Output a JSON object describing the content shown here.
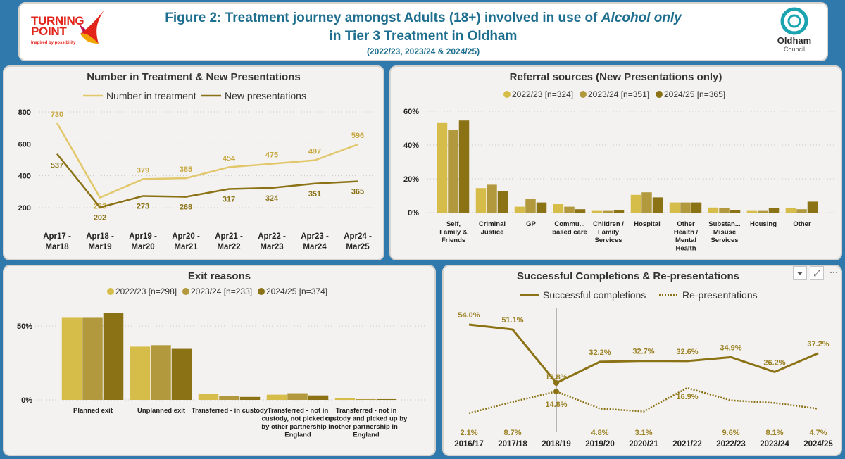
{
  "header": {
    "title_line1_prefix": "Figure 2: Treatment journey amongst Adults (18+) involved in use of ",
    "title_line1_italic": "Alcohol only",
    "title_line2": "in Tier 3 Treatment in Oldham",
    "subtitle": "(2022/23, 2023/24 & 2024/25)",
    "logo_left_line1": "TURNING",
    "logo_left_line2": "POINT",
    "logo_left_tagline": "Inspired by possibility",
    "logo_right_name": "Oldham",
    "logo_right_sub": "Council"
  },
  "colors": {
    "series_light": "#d6bd4a",
    "series_mid": "#b2993d",
    "series_dark": "#8b7214",
    "treat_line": "#e2c76a",
    "new_line": "#8b7214",
    "brand_red": "#e2231a",
    "oldham_teal": "#1aa3b0"
  },
  "toolbar_icons": [
    "filter-icon",
    "focus-mode-icon",
    "more-options-icon"
  ],
  "chart_data": [
    {
      "type": "line",
      "title": "Number in Treatment & New Presentations",
      "categories": [
        "Apr17 - Mar18",
        "Apr18 - Mar19",
        "Apr19 - Mar20",
        "Apr20 - Mar21",
        "Apr21 - Mar22",
        "Apr22 - Mar23",
        "Apr23 - Mar24",
        "Apr24 - Mar25"
      ],
      "series": [
        {
          "name": "Number in treatment",
          "values": [
            730,
            263,
            379,
            385,
            454,
            475,
            497,
            596
          ]
        },
        {
          "name": "New presentations",
          "values": [
            537,
            202,
            273,
            268,
            317,
            324,
            351,
            365
          ]
        }
      ],
      "yticks": [
        200,
        400,
        600,
        800
      ],
      "ylim": [
        120,
        830
      ],
      "grid": true,
      "legend": "top"
    },
    {
      "type": "bar",
      "title": "Referral sources (New Presentations only)",
      "categories": [
        "Self, Family & Friends",
        "Criminal Justice",
        "GP",
        "Commu... based care",
        "Children / Family Services",
        "Hospital",
        "Other Health / Mental Health",
        "Substan... Misuse Services",
        "Housing",
        "Other"
      ],
      "series": [
        {
          "name": "2022/23 [n=324]",
          "values": [
            53,
            14.5,
            3.5,
            5,
            1,
            10.5,
            6,
            3,
            1,
            2.5
          ]
        },
        {
          "name": "2023/24 [n=351]",
          "values": [
            49,
            16.5,
            8,
            3.5,
            1,
            12,
            6,
            2.5,
            1,
            2
          ]
        },
        {
          "name": "2024/25 [n=365]",
          "values": [
            54.5,
            12.5,
            6,
            2,
            1.5,
            9,
            6,
            1.5,
            2.5,
            6.5
          ]
        }
      ],
      "yticks": [
        "0%",
        "20%",
        "40%",
        "60%"
      ],
      "ylim": [
        0,
        62
      ],
      "grid": true,
      "legend": "top"
    },
    {
      "type": "bar",
      "title": "Exit reasons",
      "categories": [
        "Planned exit",
        "Unplanned exit",
        "Transferred - in custody",
        "Transferred - not in custody, not picked up by other partnership in England",
        "Transferred - not in custody and picked up by other partnership in England"
      ],
      "series": [
        {
          "name": "2022/23 [n=298]",
          "values": [
            55.5,
            36,
            4,
            3.5,
            1
          ]
        },
        {
          "name": "2023/24 [n=233]",
          "values": [
            55.5,
            37,
            2.5,
            4.5,
            0.5
          ]
        },
        {
          "name": "2024/25 [n=374]",
          "values": [
            59,
            34.5,
            2,
            3,
            0.5
          ]
        }
      ],
      "yticks": [
        "0%",
        "50%"
      ],
      "ylim": [
        0,
        65
      ],
      "grid": true,
      "legend": "top"
    },
    {
      "type": "line",
      "title": "Successful Completions & Re-presentations",
      "categories": [
        "2016/17",
        "2017/18",
        "2018/19",
        "2019/20",
        "2020/21",
        "2021/22",
        "2022/23",
        "2023/24",
        "2024/25"
      ],
      "series": [
        {
          "name": "Successful completions",
          "values": [
            54.0,
            51.1,
            19.8,
            32.2,
            32.7,
            32.6,
            34.9,
            26.2,
            37.2
          ],
          "labels": [
            "54.0%",
            "51.1%",
            "19.8%",
            "32.2%",
            "32.7%",
            "32.6%",
            "34.9%",
            "26.2%",
            "37.2%"
          ]
        },
        {
          "name": "Re-presentations",
          "values": [
            2.1,
            8.7,
            14.8,
            4.8,
            3.1,
            16.9,
            9.6,
            8.1,
            4.7
          ],
          "labels": [
            "2.1%",
            "8.7%",
            "14.8%",
            "4.8%",
            "3.1%",
            "16.9%",
            "9.6%",
            "8.1%",
            "4.7%"
          ]
        }
      ],
      "ylim": [
        0,
        60
      ],
      "grid": false,
      "legend": "top"
    }
  ]
}
